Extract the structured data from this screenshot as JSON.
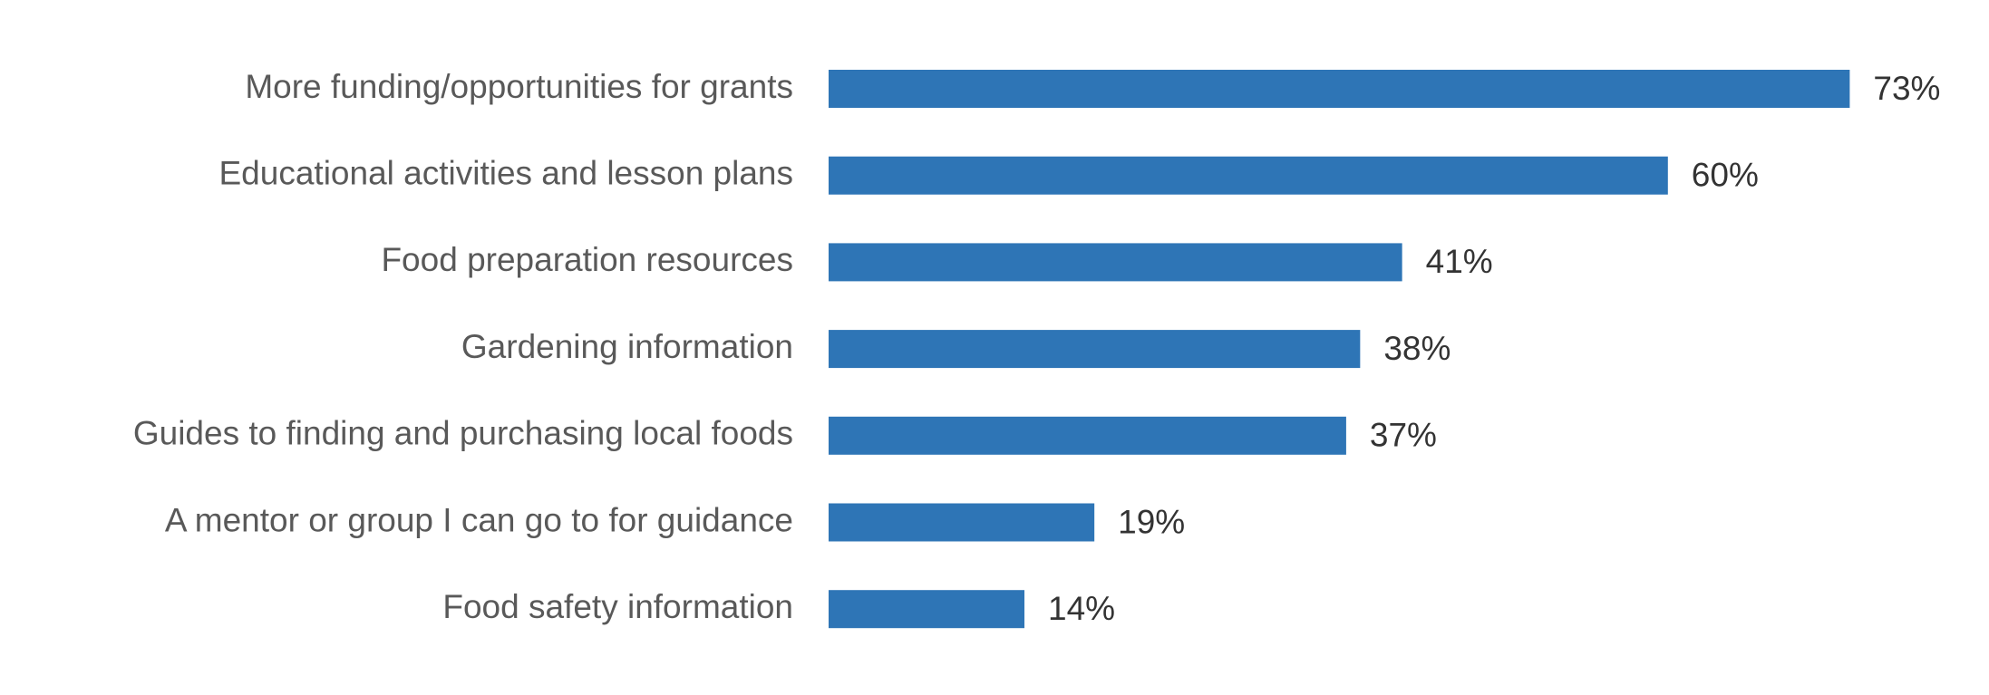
{
  "chart_data": {
    "type": "bar",
    "orientation": "horizontal",
    "color": "#2e75b6",
    "categories": [
      "More funding/opportunities for grants",
      "Educational activities and lesson plans",
      "Food preparation resources",
      "Gardening information",
      "Guides to finding and purchasing local foods",
      "A mentor or group I can go to for guidance",
      "Food safety information"
    ],
    "values": [
      73,
      60,
      41,
      38,
      37,
      19,
      14
    ],
    "value_labels": [
      "73%",
      "60%",
      "41%",
      "38%",
      "37%",
      "19%",
      "14%"
    ]
  }
}
